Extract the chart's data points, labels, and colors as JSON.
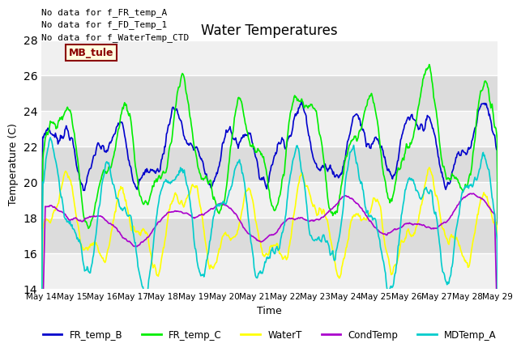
{
  "title": "Water Temperatures",
  "xlabel": "Time",
  "ylabel": "Temperature (C)",
  "ylim": [
    14,
    28
  ],
  "yticks": [
    14,
    16,
    18,
    20,
    22,
    24,
    26,
    28
  ],
  "annotations": [
    "No data for f_FR_temp_A",
    "No data for f_FD_Temp_1",
    "No data for f_WaterTemp_CTD"
  ],
  "mb_tule_label": "MB_tule",
  "legend_entries": [
    "FR_temp_B",
    "FR_temp_C",
    "WaterT",
    "CondTemp",
    "MDTemp_A"
  ],
  "legend_colors": [
    "#0000cc",
    "#00ee00",
    "#ffff00",
    "#aa00cc",
    "#00cccc"
  ],
  "bg_light": "#f0f0f0",
  "bg_dark": "#dcdcdc",
  "xticklabels": [
    "May 14",
    "May 15",
    "May 16",
    "May 17",
    "May 18",
    "May 19",
    "May 20",
    "May 21",
    "May 22",
    "May 23",
    "May 24",
    "May 25",
    "May 26",
    "May 27",
    "May 28",
    "May 29"
  ]
}
